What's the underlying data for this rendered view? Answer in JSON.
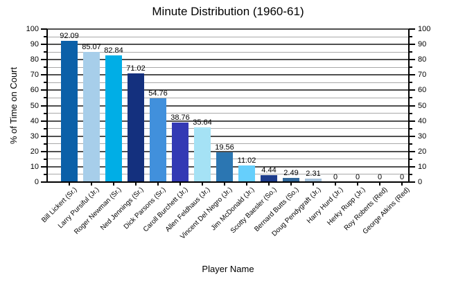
{
  "chart_data": {
    "type": "bar",
    "title": "Minute Distribution (1960-61)",
    "xlabel": "Player Name",
    "ylabel": "% of Time on Court",
    "ylim": [
      0,
      100
    ],
    "y_major_step": 10,
    "y_minor_step": 5,
    "grid": true,
    "legend": false,
    "categories": [
      "Bill Lickert (Sr.)",
      "Larry Pursiful (Jr.)",
      "Roger Newman (Sr.)",
      "Ned Jennings (Sr.)",
      "Dick Parsons (Sr.)",
      "Caroll Burchett (Jr.)",
      "Allen Feldhaus (Jr.)",
      "Vincent Del Negro (Jr.)",
      "Jim McDonald (Jr.)",
      "Scotty Baesler (So.)",
      "Bernard Butts (So.)",
      "Doug Pendygraft (Jr.)",
      "Harry Hurd (Jr.)",
      "Herky Rupp (Jr.)",
      "Roy Roberts (Red)",
      "George Atkins (Red)"
    ],
    "values": [
      92.09,
      85.07,
      82.84,
      71.02,
      54.76,
      38.76,
      35.64,
      19.56,
      11.02,
      4.44,
      2.49,
      2.31,
      0,
      0,
      0,
      0
    ],
    "value_labels": [
      "92.09",
      "85.07",
      "82.84",
      "71.02",
      "54.76",
      "38.76",
      "35.64",
      "19.56",
      "11.02",
      "4.44",
      "2.49",
      "2.31",
      "0",
      "0",
      "0",
      "0"
    ],
    "bar_colors": [
      "#0b60a8",
      "#a7ceea",
      "#00aee6",
      "#14307e",
      "#4190dc",
      "#3339b4",
      "#a5e2f5",
      "#2b76b2",
      "#66cffc",
      "#1d3c8c",
      "#2f6699",
      "#a4c2dc",
      null,
      null,
      null,
      null
    ],
    "axis_color": "#000000",
    "grid_major_color": "#4f4f4f",
    "grid_minor_color": "#a8a8a8",
    "text_color": "#000000"
  }
}
